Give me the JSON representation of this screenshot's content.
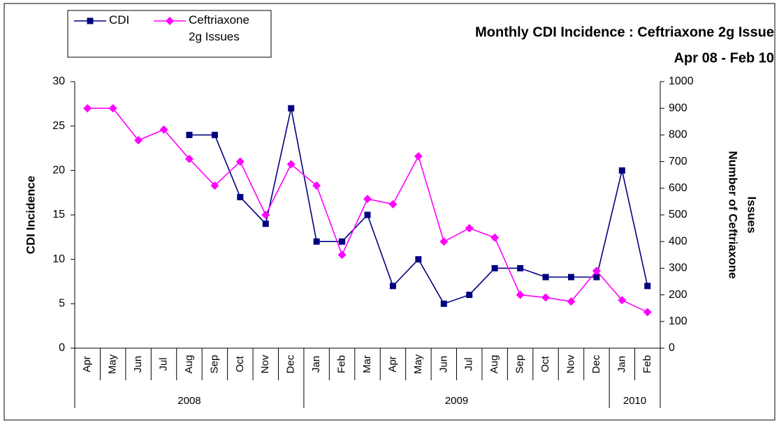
{
  "chart_data": {
    "type": "line",
    "title": "Monthly CDI Incidence : Ceftriaxone 2g Issue",
    "subtitle": "Apr 08 - Feb 10",
    "ylabel": "CDI Incidence",
    "y2label_lines": [
      "Number of Ceftriaxone",
      "Issues"
    ],
    "category_groups": [
      {
        "label": "2008",
        "categories": [
          "Apr",
          "May",
          "Jun",
          "Jul",
          "Aug",
          "Sep",
          "Oct",
          "Nov",
          "Dec"
        ]
      },
      {
        "label": "2009",
        "categories": [
          "Jan",
          "Feb",
          "Mar",
          "Apr",
          "May",
          "Jun",
          "Jul",
          "Aug",
          "Sep",
          "Oct",
          "Nov",
          "Dec"
        ]
      },
      {
        "label": "2010",
        "categories": [
          "Jan",
          "Feb"
        ]
      }
    ],
    "series": [
      {
        "name": "CDI",
        "color": "#000080",
        "marker": "square",
        "axis": "y",
        "values": [
          null,
          null,
          null,
          null,
          24,
          24,
          17,
          14,
          27,
          12,
          12,
          15,
          7,
          10,
          5,
          6,
          9,
          9,
          8,
          8,
          8,
          20,
          7
        ]
      },
      {
        "name": "Ceftriaxone 2g Issues",
        "color": "#ff00ff",
        "marker": "diamond",
        "axis": "y2",
        "values": [
          900,
          900,
          780,
          820,
          710,
          610,
          700,
          500,
          690,
          610,
          350,
          560,
          540,
          720,
          400,
          450,
          415,
          200,
          190,
          175,
          290,
          180,
          135
        ]
      }
    ],
    "ylim": [
      0,
      30
    ],
    "yticks": [
      0,
      5,
      10,
      15,
      20,
      25,
      30
    ],
    "y2lim": [
      0,
      1000
    ],
    "y2ticks": [
      0,
      100,
      200,
      300,
      400,
      500,
      600,
      700,
      800,
      900,
      1000
    ],
    "grid": false,
    "legend": "top-left"
  }
}
